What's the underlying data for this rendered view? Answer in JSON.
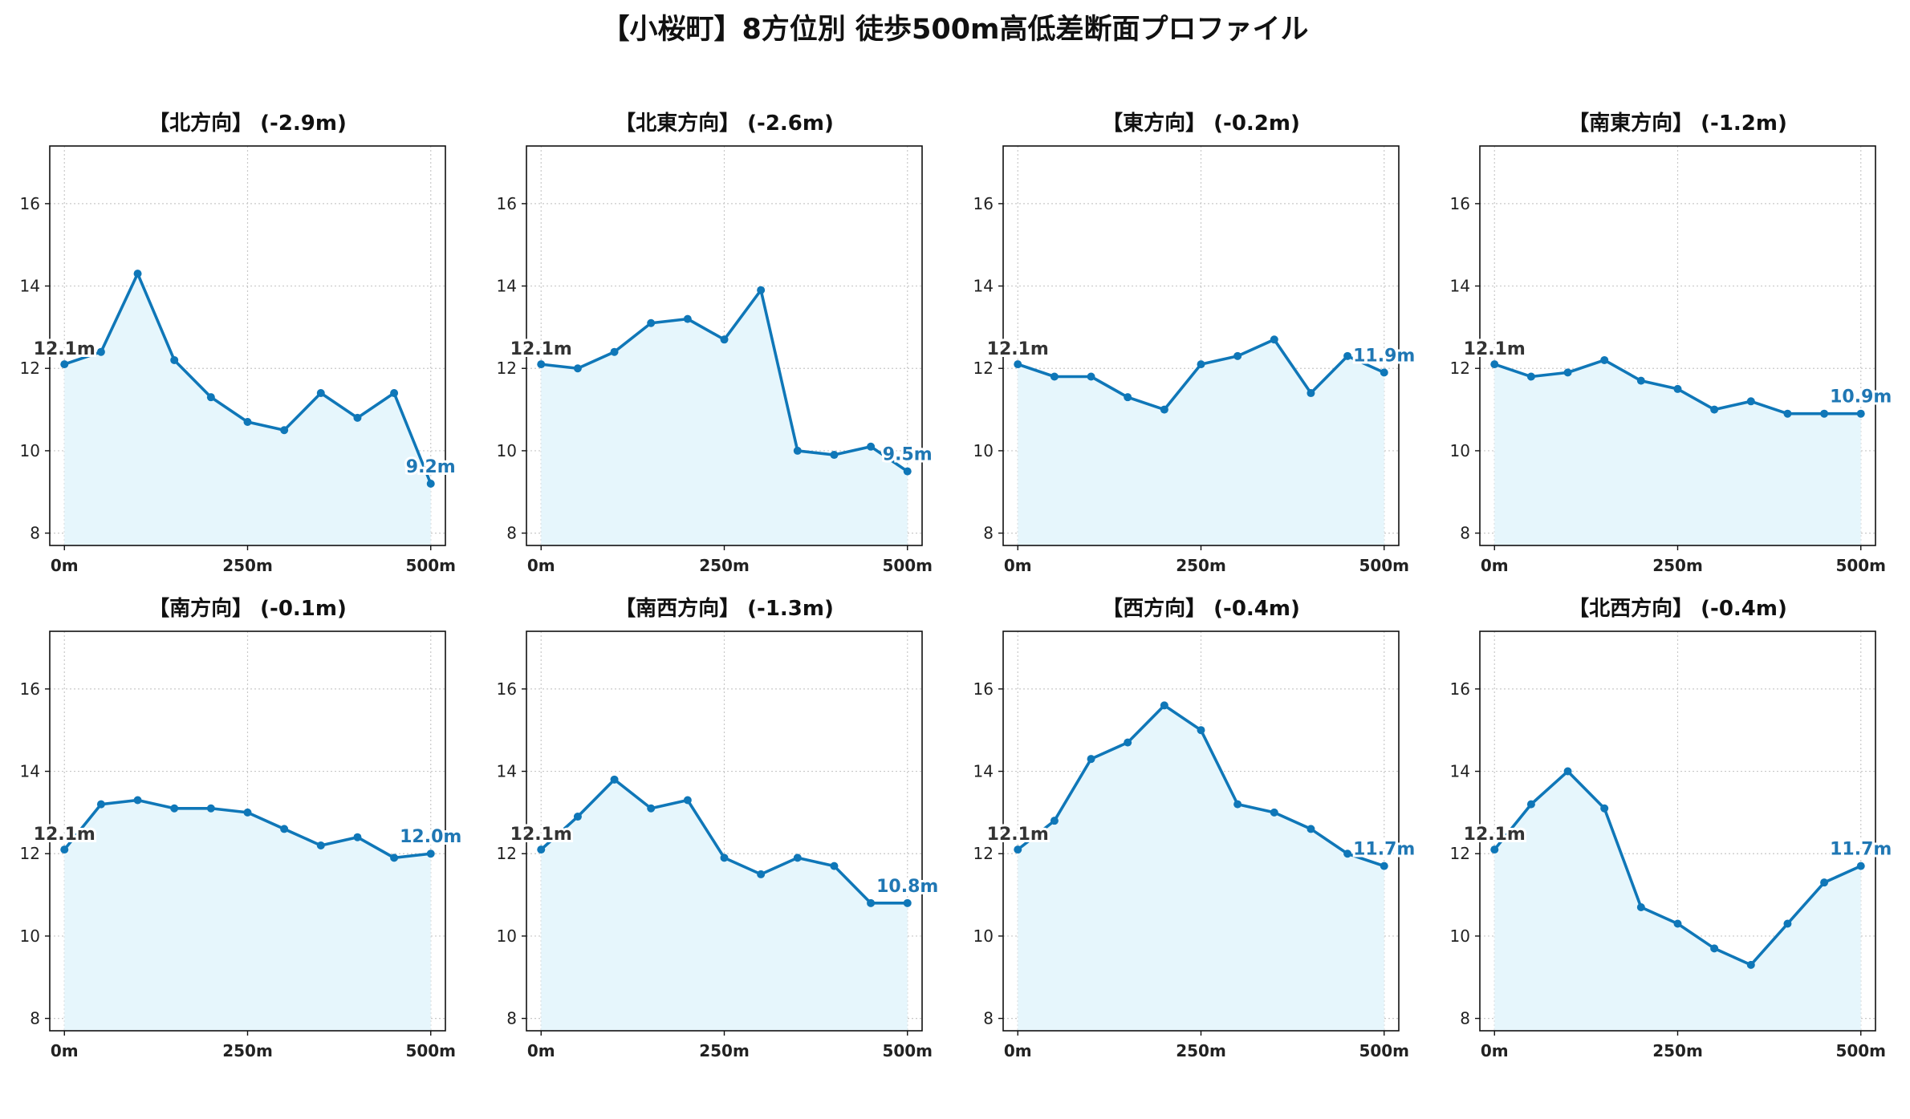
{
  "title": "【小桜町】8方位別 徒歩500m高低差断面プロファイル",
  "colors": {
    "line": "#0f77b8",
    "fill": "#e6f6fc",
    "label_end": "#1f77b4",
    "label_start": "#333333",
    "grid": "#c8c8c8"
  },
  "chart_data": [
    {
      "type": "area",
      "title": "【北方向】 (-2.9m)",
      "x": [
        0,
        50,
        100,
        150,
        200,
        250,
        300,
        350,
        400,
        450,
        500
      ],
      "values": [
        12.1,
        12.4,
        14.3,
        12.2,
        11.3,
        10.7,
        10.5,
        11.4,
        10.8,
        11.4,
        9.2
      ],
      "start_label": "12.1m",
      "end_label": "9.2m",
      "xticks": [
        "0m",
        "250m",
        "500m"
      ],
      "yticks": [
        8,
        10,
        12,
        14,
        16
      ],
      "ylim": [
        7.7,
        17.4
      ],
      "xlim": [
        -20,
        520
      ],
      "grid": true
    },
    {
      "type": "area",
      "title": "【北東方向】 (-2.6m)",
      "x": [
        0,
        50,
        100,
        150,
        200,
        250,
        300,
        350,
        400,
        450,
        500
      ],
      "values": [
        12.1,
        12.0,
        12.4,
        13.1,
        13.2,
        12.7,
        13.9,
        10.0,
        9.9,
        10.1,
        9.5
      ],
      "start_label": "12.1m",
      "end_label": "9.5m",
      "xticks": [
        "0m",
        "250m",
        "500m"
      ],
      "yticks": [
        8,
        10,
        12,
        14,
        16
      ],
      "ylim": [
        7.7,
        17.4
      ],
      "xlim": [
        -20,
        520
      ],
      "grid": true
    },
    {
      "type": "area",
      "title": "【東方向】 (-0.2m)",
      "x": [
        0,
        50,
        100,
        150,
        200,
        250,
        300,
        350,
        400,
        450,
        500
      ],
      "values": [
        12.1,
        11.8,
        11.8,
        11.3,
        11.0,
        12.1,
        12.3,
        12.7,
        11.4,
        12.3,
        11.9
      ],
      "start_label": "12.1m",
      "end_label": "11.9m",
      "xticks": [
        "0m",
        "250m",
        "500m"
      ],
      "yticks": [
        8,
        10,
        12,
        14,
        16
      ],
      "ylim": [
        7.7,
        17.4
      ],
      "xlim": [
        -20,
        520
      ],
      "grid": true
    },
    {
      "type": "area",
      "title": "【南東方向】 (-1.2m)",
      "x": [
        0,
        50,
        100,
        150,
        200,
        250,
        300,
        350,
        400,
        450,
        500
      ],
      "values": [
        12.1,
        11.8,
        11.9,
        12.2,
        11.7,
        11.5,
        11.0,
        11.2,
        10.9,
        10.9,
        10.9
      ],
      "start_label": "12.1m",
      "end_label": "10.9m",
      "xticks": [
        "0m",
        "250m",
        "500m"
      ],
      "yticks": [
        8,
        10,
        12,
        14,
        16
      ],
      "ylim": [
        7.7,
        17.4
      ],
      "xlim": [
        -20,
        520
      ],
      "grid": true
    },
    {
      "type": "area",
      "title": "【南方向】 (-0.1m)",
      "x": [
        0,
        50,
        100,
        150,
        200,
        250,
        300,
        350,
        400,
        450,
        500
      ],
      "values": [
        12.1,
        13.2,
        13.3,
        13.1,
        13.1,
        13.0,
        12.6,
        12.2,
        12.4,
        11.9,
        12.0
      ],
      "start_label": "12.1m",
      "end_label": "12.0m",
      "xticks": [
        "0m",
        "250m",
        "500m"
      ],
      "yticks": [
        8,
        10,
        12,
        14,
        16
      ],
      "ylim": [
        7.7,
        17.4
      ],
      "xlim": [
        -20,
        520
      ],
      "grid": true
    },
    {
      "type": "area",
      "title": "【南西方向】 (-1.3m)",
      "x": [
        0,
        50,
        100,
        150,
        200,
        250,
        300,
        350,
        400,
        450,
        500
      ],
      "values": [
        12.1,
        12.9,
        13.8,
        13.1,
        13.3,
        11.9,
        11.5,
        11.9,
        11.7,
        10.8,
        10.8
      ],
      "start_label": "12.1m",
      "end_label": "10.8m",
      "xticks": [
        "0m",
        "250m",
        "500m"
      ],
      "yticks": [
        8,
        10,
        12,
        14,
        16
      ],
      "ylim": [
        7.7,
        17.4
      ],
      "xlim": [
        -20,
        520
      ],
      "grid": true
    },
    {
      "type": "area",
      "title": "【西方向】 (-0.4m)",
      "x": [
        0,
        50,
        100,
        150,
        200,
        250,
        300,
        350,
        400,
        450,
        500
      ],
      "values": [
        12.1,
        12.8,
        14.3,
        14.7,
        15.6,
        15.0,
        13.2,
        13.0,
        12.6,
        12.0,
        11.7
      ],
      "start_label": "12.1m",
      "end_label": "11.7m",
      "xticks": [
        "0m",
        "250m",
        "500m"
      ],
      "yticks": [
        8,
        10,
        12,
        14,
        16
      ],
      "ylim": [
        7.7,
        17.4
      ],
      "xlim": [
        -20,
        520
      ],
      "grid": true
    },
    {
      "type": "area",
      "title": "【北西方向】 (-0.4m)",
      "x": [
        0,
        50,
        100,
        150,
        200,
        250,
        300,
        350,
        400,
        450,
        500
      ],
      "values": [
        12.1,
        13.2,
        14.0,
        13.1,
        10.7,
        10.3,
        9.7,
        9.3,
        10.3,
        11.3,
        11.7
      ],
      "start_label": "12.1m",
      "end_label": "11.7m",
      "xticks": [
        "0m",
        "250m",
        "500m"
      ],
      "yticks": [
        8,
        10,
        12,
        14,
        16
      ],
      "ylim": [
        7.7,
        17.4
      ],
      "xlim": [
        -20,
        520
      ],
      "grid": true
    }
  ]
}
